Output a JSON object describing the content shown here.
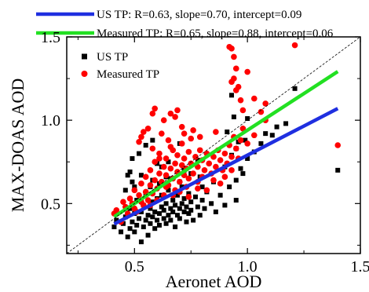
{
  "chart_data": {
    "type": "scatter",
    "xlabel": "Aeronet AOD",
    "ylabel": "MAX-DOAS AOD",
    "xlim": [
      0.2,
      1.5
    ],
    "ylim": [
      0.2,
      1.5
    ],
    "x_ticks": [
      "0.5",
      "1.0",
      "1.5"
    ],
    "y_ticks": [
      "0.5",
      "1.0",
      "1.5"
    ],
    "grid": false,
    "one_to_one_line": true,
    "legend_markers": {
      "placement": "top-left inside plot",
      "entries": [
        {
          "label": "US TP",
          "marker": "square",
          "color": "#000000"
        },
        {
          "label": "Measured TP",
          "marker": "circle",
          "color": "#ff0000"
        }
      ]
    },
    "legend_lines": {
      "placement": "above plot",
      "entries": [
        {
          "label": "US TP: R=0.63, slope=0.70, intercept=0.09",
          "color": "#1f2fe0"
        },
        {
          "label": "Measured TP: R=0.65, slope=0.88, intercept=0.06",
          "color": "#22e022"
        }
      ]
    },
    "series": [
      {
        "name": "US TP",
        "marker": "square",
        "color": "#000000",
        "fit": {
          "slope": 0.7,
          "intercept": 0.09,
          "x_range": [
            0.41,
            1.4
          ]
        },
        "points": [
          [
            0.41,
            0.36
          ],
          [
            0.42,
            0.4
          ],
          [
            0.44,
            0.33
          ],
          [
            0.45,
            0.38
          ],
          [
            0.46,
            0.42
          ],
          [
            0.47,
            0.3
          ],
          [
            0.48,
            0.35
          ],
          [
            0.48,
            0.47
          ],
          [
            0.49,
            0.39
          ],
          [
            0.5,
            0.44
          ],
          [
            0.5,
            0.33
          ],
          [
            0.51,
            0.37
          ],
          [
            0.51,
            0.52
          ],
          [
            0.52,
            0.41
          ],
          [
            0.53,
            0.27
          ],
          [
            0.53,
            0.45
          ],
          [
            0.54,
            0.36
          ],
          [
            0.54,
            0.49
          ],
          [
            0.55,
            0.4
          ],
          [
            0.55,
            0.56
          ],
          [
            0.56,
            0.43
          ],
          [
            0.56,
            0.31
          ],
          [
            0.57,
            0.38
          ],
          [
            0.57,
            0.47
          ],
          [
            0.58,
            0.42
          ],
          [
            0.58,
            0.51
          ],
          [
            0.59,
            0.35
          ],
          [
            0.59,
            0.45
          ],
          [
            0.6,
            0.4
          ],
          [
            0.6,
            0.53
          ],
          [
            0.61,
            0.44
          ],
          [
            0.61,
            0.37
          ],
          [
            0.62,
            0.48
          ],
          [
            0.62,
            0.55
          ],
          [
            0.63,
            0.41
          ],
          [
            0.63,
            0.46
          ],
          [
            0.64,
            0.5
          ],
          [
            0.64,
            0.38
          ],
          [
            0.65,
            0.43
          ],
          [
            0.65,
            0.58
          ],
          [
            0.66,
            0.47
          ],
          [
            0.66,
            0.4
          ],
          [
            0.67,
            0.52
          ],
          [
            0.67,
            0.45
          ],
          [
            0.68,
            0.36
          ],
          [
            0.68,
            0.49
          ],
          [
            0.69,
            0.43
          ],
          [
            0.69,
            0.55
          ],
          [
            0.7,
            0.47
          ],
          [
            0.7,
            0.41
          ],
          [
            0.71,
            0.5
          ],
          [
            0.71,
            0.6
          ],
          [
            0.72,
            0.45
          ],
          [
            0.72,
            0.53
          ],
          [
            0.73,
            0.39
          ],
          [
            0.73,
            0.48
          ],
          [
            0.74,
            0.56
          ],
          [
            0.74,
            0.44
          ],
          [
            0.75,
            0.51
          ],
          [
            0.75,
            0.46
          ],
          [
            0.76,
            0.4
          ],
          [
            0.77,
            0.54
          ],
          [
            0.78,
            0.48
          ],
          [
            0.79,
            0.43
          ],
          [
            0.8,
            0.52
          ],
          [
            0.81,
            0.47
          ],
          [
            0.82,
            0.57
          ],
          [
            0.84,
            0.5
          ],
          [
            0.86,
            0.45
          ],
          [
            0.88,
            0.55
          ],
          [
            0.9,
            0.49
          ],
          [
            0.92,
            0.6
          ],
          [
            0.95,
            0.52
          ],
          [
            0.57,
            0.6
          ],
          [
            0.61,
            0.62
          ],
          [
            0.66,
            0.65
          ],
          [
            0.7,
            0.63
          ],
          [
            0.75,
            0.68
          ],
          [
            0.8,
            0.6
          ],
          [
            0.85,
            0.63
          ],
          [
            0.46,
            0.58
          ],
          [
            0.49,
            0.63
          ],
          [
            0.5,
            0.6
          ],
          [
            0.47,
            0.67
          ],
          [
            0.48,
            0.69
          ],
          [
            0.53,
            0.67
          ],
          [
            0.58,
            0.64
          ],
          [
            0.64,
            0.66
          ],
          [
            0.72,
            0.7
          ],
          [
            0.79,
            0.66
          ],
          [
            0.55,
            0.85
          ],
          [
            0.58,
            0.88
          ],
          [
            0.7,
            0.86
          ],
          [
            0.78,
            0.76
          ],
          [
            0.65,
            0.75
          ],
          [
            0.6,
            0.74
          ],
          [
            0.52,
            0.8
          ],
          [
            0.49,
            0.77
          ],
          [
            0.62,
            0.72
          ],
          [
            0.9,
            0.72
          ],
          [
            0.93,
            0.79
          ],
          [
            0.95,
            0.83
          ],
          [
            0.96,
            0.87
          ],
          [
            1.0,
            0.77
          ],
          [
            1.03,
            0.81
          ],
          [
            1.06,
            0.86
          ],
          [
            1.11,
            0.91
          ],
          [
            1.13,
            0.96
          ],
          [
            1.17,
            0.98
          ],
          [
            1.21,
            1.19
          ],
          [
            0.93,
            1.15
          ],
          [
            0.94,
            1.02
          ],
          [
            0.91,
            0.93
          ],
          [
            0.98,
            0.68
          ],
          [
            0.95,
            0.64
          ],
          [
            0.99,
            0.88
          ],
          [
            1.0,
            1.01
          ],
          [
            1.08,
            0.92
          ],
          [
            0.97,
            0.71
          ],
          [
            1.4,
            0.7
          ]
        ]
      },
      {
        "name": "Measured TP",
        "marker": "circle",
        "color": "#ff0000",
        "fit": {
          "slope": 0.88,
          "intercept": 0.06,
          "x_range": [
            0.41,
            1.4
          ]
        },
        "points": [
          [
            0.41,
            0.44
          ],
          [
            0.42,
            0.46
          ],
          [
            0.44,
            0.39
          ],
          [
            0.45,
            0.51
          ],
          [
            0.47,
            0.44
          ],
          [
            0.48,
            0.53
          ],
          [
            0.49,
            0.5
          ],
          [
            0.5,
            0.58
          ],
          [
            0.51,
            0.45
          ],
          [
            0.52,
            0.55
          ],
          [
            0.53,
            0.62
          ],
          [
            0.54,
            0.49
          ],
          [
            0.55,
            0.57
          ],
          [
            0.55,
            0.66
          ],
          [
            0.56,
            0.52
          ],
          [
            0.57,
            0.61
          ],
          [
            0.57,
            0.7
          ],
          [
            0.58,
            0.56
          ],
          [
            0.59,
            0.64
          ],
          [
            0.59,
            0.75
          ],
          [
            0.6,
            0.59
          ],
          [
            0.61,
            0.68
          ],
          [
            0.61,
            0.8
          ],
          [
            0.62,
            0.63
          ],
          [
            0.63,
            0.72
          ],
          [
            0.63,
            0.55
          ],
          [
            0.64,
            0.67
          ],
          [
            0.64,
            0.77
          ],
          [
            0.65,
            0.61
          ],
          [
            0.66,
            0.71
          ],
          [
            0.66,
            0.84
          ],
          [
            0.67,
            0.65
          ],
          [
            0.68,
            0.74
          ],
          [
            0.68,
            0.58
          ],
          [
            0.69,
            0.69
          ],
          [
            0.69,
            0.79
          ],
          [
            0.7,
            0.63
          ],
          [
            0.71,
            0.73
          ],
          [
            0.71,
            0.86
          ],
          [
            0.72,
            0.67
          ],
          [
            0.72,
            0.77
          ],
          [
            0.73,
            0.6
          ],
          [
            0.73,
            0.71
          ],
          [
            0.74,
            0.81
          ],
          [
            0.74,
            0.65
          ],
          [
            0.75,
            0.74
          ],
          [
            0.75,
            0.89
          ],
          [
            0.76,
            0.68
          ],
          [
            0.77,
            0.78
          ],
          [
            0.78,
            0.63
          ],
          [
            0.78,
            0.72
          ],
          [
            0.79,
            0.82
          ],
          [
            0.8,
            0.66
          ],
          [
            0.8,
            0.76
          ],
          [
            0.81,
            0.7
          ],
          [
            0.82,
            0.8
          ],
          [
            0.83,
            0.74
          ],
          [
            0.84,
            0.68
          ],
          [
            0.85,
            0.78
          ],
          [
            0.86,
            0.72
          ],
          [
            0.87,
            0.82
          ],
          [
            0.88,
            0.76
          ],
          [
            0.89,
            0.7
          ],
          [
            0.9,
            0.8
          ],
          [
            0.91,
            0.74
          ],
          [
            0.92,
            0.85
          ],
          [
            0.93,
            0.78
          ],
          [
            0.94,
            0.9
          ],
          [
            0.95,
            0.83
          ],
          [
            0.96,
            0.77
          ],
          [
            0.97,
            0.88
          ],
          [
            0.98,
            0.95
          ],
          [
            1.0,
            0.86
          ],
          [
            1.03,
            0.91
          ],
          [
            1.08,
            1.0
          ],
          [
            0.58,
            1.04
          ],
          [
            0.59,
            1.07
          ],
          [
            0.63,
            1.0
          ],
          [
            0.66,
            1.04
          ],
          [
            0.68,
            1.02
          ],
          [
            0.69,
            1.06
          ],
          [
            0.71,
            0.96
          ],
          [
            0.56,
            0.95
          ],
          [
            0.53,
            0.9
          ],
          [
            0.52,
            0.87
          ],
          [
            0.54,
            0.93
          ],
          [
            0.62,
            0.92
          ],
          [
            0.76,
            0.94
          ],
          [
            0.92,
            1.44
          ],
          [
            0.93,
            1.43
          ],
          [
            0.93,
            1.23
          ],
          [
            0.94,
            1.25
          ],
          [
            0.95,
            1.31
          ],
          [
            0.96,
            1.2
          ],
          [
            0.97,
            1.12
          ],
          [
            0.94,
            1.38
          ],
          [
            0.95,
            1.18
          ],
          [
            0.98,
            1.06
          ],
          [
            1.0,
            1.29
          ],
          [
            1.03,
            1.13
          ],
          [
            1.06,
            1.05
          ],
          [
            1.08,
            1.1
          ],
          [
            1.21,
            1.45
          ],
          [
            1.4,
            0.85
          ],
          [
            0.64,
            0.6
          ],
          [
            0.7,
            0.57
          ],
          [
            0.78,
            0.59
          ],
          [
            0.85,
            0.64
          ],
          [
            0.9,
            0.66
          ],
          [
            0.6,
            0.52
          ],
          [
            0.5,
            0.47
          ],
          [
            0.46,
            0.48
          ],
          [
            0.53,
            0.51
          ],
          [
            0.57,
            0.49
          ],
          [
            0.67,
            0.55
          ],
          [
            0.74,
            0.54
          ],
          [
            0.82,
            0.58
          ],
          [
            0.88,
            0.62
          ],
          [
            0.93,
            0.7
          ],
          [
            0.65,
            0.88
          ],
          [
            0.79,
            0.9
          ],
          [
            0.72,
            0.92
          ],
          [
            0.86,
            0.93
          ],
          [
            0.58,
            0.83
          ],
          [
            0.61,
            0.77
          ],
          [
            0.67,
            0.82
          ]
        ]
      }
    ]
  }
}
